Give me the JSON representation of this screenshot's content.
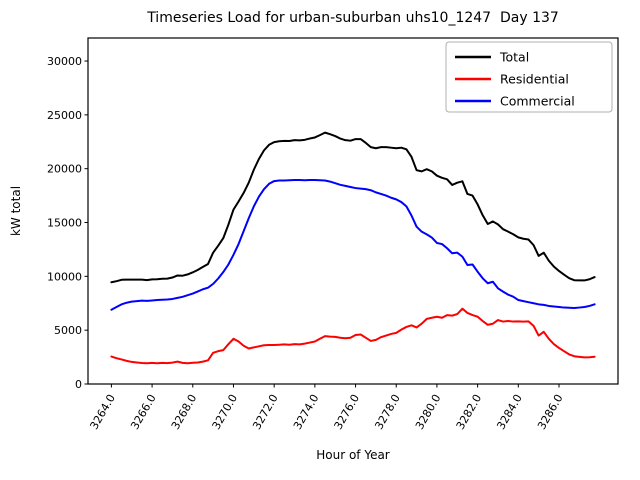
{
  "figure": {
    "background": "#ffffff",
    "axes_edge_color": "#000000"
  },
  "chart_data": {
    "type": "line",
    "title": "Timeseries Load for urban-suburban uhs10_1247  Day 137",
    "xlabel": "Hour of Year",
    "ylabel": "kW total",
    "xlim": [
      3262.85,
      3288.9
    ],
    "ylim": [
      0,
      32139
    ],
    "x_ticks": [
      3264,
      3266,
      3268,
      3270,
      3272,
      3274,
      3276,
      3278,
      3280,
      3282,
      3284,
      3286
    ],
    "x_tick_decimals": 1,
    "x_tick_rotation_deg": 60,
    "y_ticks": [
      0,
      5000,
      10000,
      15000,
      20000,
      25000,
      30000
    ],
    "grid": false,
    "legend_position": "upper right",
    "x": [
      3264.0,
      3264.25,
      3264.5,
      3264.75,
      3265.0,
      3265.25,
      3265.5,
      3265.75,
      3266.0,
      3266.25,
      3266.5,
      3266.75,
      3267.0,
      3267.25,
      3267.5,
      3267.75,
      3268.0,
      3268.25,
      3268.5,
      3268.75,
      3269.0,
      3269.25,
      3269.5,
      3269.75,
      3270.0,
      3270.25,
      3270.5,
      3270.75,
      3271.0,
      3271.25,
      3271.5,
      3271.75,
      3272.0,
      3272.25,
      3272.5,
      3272.75,
      3273.0,
      3273.25,
      3273.5,
      3273.75,
      3274.0,
      3274.25,
      3274.5,
      3274.75,
      3275.0,
      3275.25,
      3275.5,
      3275.75,
      3276.0,
      3276.25,
      3276.5,
      3276.75,
      3277.0,
      3277.25,
      3277.5,
      3277.75,
      3278.0,
      3278.25,
      3278.5,
      3278.75,
      3279.0,
      3279.25,
      3279.5,
      3279.75,
      3280.0,
      3280.25,
      3280.5,
      3280.75,
      3281.0,
      3281.25,
      3281.5,
      3281.75,
      3282.0,
      3282.25,
      3282.5,
      3282.75,
      3283.0,
      3283.25,
      3283.5,
      3283.75,
      3284.0,
      3284.25,
      3284.5,
      3284.75,
      3285.0,
      3285.25,
      3285.5,
      3285.75,
      3286.0,
      3286.25,
      3286.5,
      3286.75,
      3287.0,
      3287.25,
      3287.5,
      3287.75
    ],
    "series": [
      {
        "name": "Total",
        "color": "#000000",
        "values": [
          9450,
          9550,
          9680,
          9700,
          9700,
          9700,
          9700,
          9650,
          9720,
          9730,
          9780,
          9790,
          9890,
          10080,
          10060,
          10180,
          10370,
          10600,
          10880,
          11150,
          12200,
          12850,
          13550,
          14800,
          16200,
          16950,
          17750,
          18700,
          19900,
          20900,
          21700,
          22220,
          22470,
          22550,
          22580,
          22570,
          22650,
          22630,
          22680,
          22800,
          22900,
          23120,
          23350,
          23200,
          23030,
          22800,
          22650,
          22600,
          22750,
          22750,
          22400,
          22000,
          21900,
          22000,
          22000,
          21950,
          21900,
          21950,
          21800,
          21100,
          19860,
          19750,
          19950,
          19750,
          19350,
          19150,
          19010,
          18490,
          18700,
          18830,
          17650,
          17500,
          16680,
          15670,
          14860,
          15100,
          14830,
          14380,
          14150,
          13910,
          13620,
          13490,
          13420,
          12900,
          11900,
          12200,
          11450,
          10900,
          10500,
          10150,
          9830,
          9640,
          9620,
          9620,
          9730,
          9930
        ]
      },
      {
        "name": "Residential",
        "color": "#ff0000",
        "values": [
          2550,
          2400,
          2280,
          2150,
          2050,
          2000,
          1950,
          1930,
          1960,
          1930,
          1960,
          1940,
          1990,
          2080,
          1960,
          1930,
          1970,
          2000,
          2080,
          2200,
          2900,
          3050,
          3150,
          3700,
          4200,
          3950,
          3550,
          3300,
          3400,
          3500,
          3600,
          3620,
          3620,
          3650,
          3680,
          3650,
          3700,
          3680,
          3750,
          3850,
          3950,
          4200,
          4450,
          4400,
          4380,
          4300,
          4250,
          4300,
          4550,
          4600,
          4300,
          4000,
          4100,
          4350,
          4500,
          4650,
          4750,
          5050,
          5300,
          5450,
          5250,
          5600,
          6050,
          6150,
          6250,
          6150,
          6400,
          6350,
          6500,
          7000,
          6600,
          6400,
          6250,
          5850,
          5500,
          5600,
          5940,
          5800,
          5850,
          5800,
          5820,
          5790,
          5820,
          5400,
          4500,
          4850,
          4200,
          3700,
          3350,
          3050,
          2750,
          2580,
          2520,
          2470,
          2480,
          2530
        ]
      },
      {
        "name": "Commercial",
        "color": "#0000ff",
        "values": [
          6900,
          7150,
          7400,
          7550,
          7650,
          7700,
          7750,
          7720,
          7760,
          7800,
          7820,
          7850,
          7900,
          8000,
          8100,
          8250,
          8400,
          8600,
          8800,
          8950,
          9300,
          9800,
          10400,
          11100,
          12000,
          13000,
          14200,
          15400,
          16500,
          17400,
          18100,
          18600,
          18850,
          18900,
          18900,
          18920,
          18950,
          18950,
          18930,
          18950,
          18950,
          18920,
          18900,
          18800,
          18650,
          18500,
          18400,
          18300,
          18200,
          18150,
          18100,
          18000,
          17800,
          17650,
          17500,
          17300,
          17150,
          16900,
          16500,
          15650,
          14610,
          14150,
          13900,
          13600,
          13100,
          13000,
          12610,
          12140,
          12200,
          11830,
          11050,
          11100,
          10430,
          9820,
          9360,
          9500,
          8890,
          8580,
          8300,
          8110,
          7800,
          7700,
          7600,
          7500,
          7400,
          7350,
          7250,
          7200,
          7150,
          7100,
          7080,
          7060,
          7100,
          7150,
          7250,
          7400
        ]
      }
    ]
  }
}
